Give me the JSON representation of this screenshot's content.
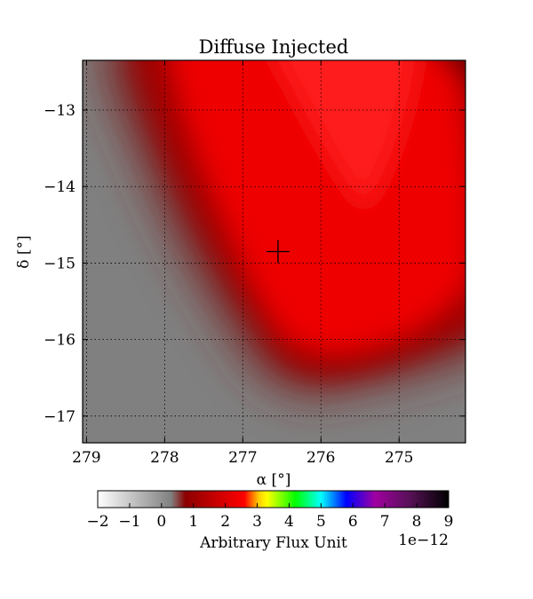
{
  "chart_data": {
    "type": "heatmap",
    "title": "Diffuse Injected",
    "xlabel": "α [°]",
    "ylabel": "δ [°]",
    "x_inverted": true,
    "xlim": [
      279.05,
      274.15
    ],
    "ylim": [
      -17.35,
      -12.35
    ],
    "x_ticks": [
      279,
      278,
      277,
      276,
      275
    ],
    "x_tick_labels": [
      "279",
      "278",
      "277",
      "276",
      "275"
    ],
    "y_ticks": [
      -13,
      -14,
      -15,
      -16,
      -17
    ],
    "y_tick_labels": [
      "−13",
      "−14",
      "−15",
      "−16",
      "−17"
    ],
    "grid": true,
    "grid_style": "dotted",
    "marker": {
      "shape": "cross",
      "ra": 276.55,
      "dec": -14.85
    },
    "colorbar": {
      "label": "Arbitrary Flux Unit",
      "offset_text": "1e−12",
      "range": [
        -2,
        9
      ],
      "ticks": [
        -2,
        -1,
        0,
        1,
        2,
        3,
        4,
        5,
        6,
        7,
        8,
        9
      ],
      "tick_labels": [
        "−2",
        "−1",
        "0",
        "1",
        "2",
        "3",
        "4",
        "5",
        "6",
        "7",
        "8",
        "9"
      ],
      "colormap_stops": [
        {
          "value": -2.0,
          "color": "#ffffff"
        },
        {
          "value": 0.3,
          "color": "#808080"
        },
        {
          "value": 0.75,
          "color": "#8c0000"
        },
        {
          "value": 2.6,
          "color": "#ff0000"
        },
        {
          "value": 3.05,
          "color": "#ffcc00"
        },
        {
          "value": 3.3,
          "color": "#ffff00"
        },
        {
          "value": 4.2,
          "color": "#00ff00"
        },
        {
          "value": 5.0,
          "color": "#00ffff"
        },
        {
          "value": 5.8,
          "color": "#0000ff"
        },
        {
          "value": 6.7,
          "color": "#a000a0"
        },
        {
          "value": 7.8,
          "color": "#551155"
        },
        {
          "value": 9.0,
          "color": "#000000"
        }
      ]
    }
  }
}
